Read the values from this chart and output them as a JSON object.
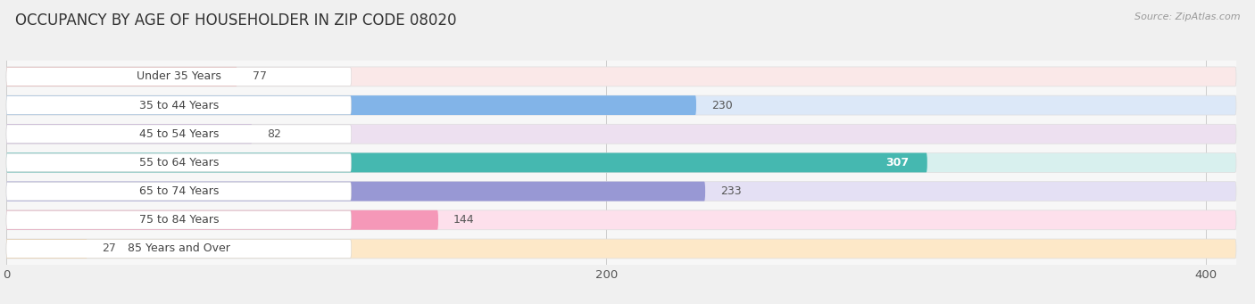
{
  "title": "OCCUPANCY BY AGE OF HOUSEHOLDER IN ZIP CODE 08020",
  "source": "Source: ZipAtlas.com",
  "categories": [
    "Under 35 Years",
    "35 to 44 Years",
    "45 to 54 Years",
    "55 to 64 Years",
    "65 to 74 Years",
    "75 to 84 Years",
    "85 Years and Over"
  ],
  "values": [
    77,
    230,
    82,
    307,
    233,
    144,
    27
  ],
  "bar_colors": [
    "#f0a0a0",
    "#82b4e8",
    "#c4a8d8",
    "#45b8b0",
    "#9898d4",
    "#f598b8",
    "#f5c88a"
  ],
  "bar_bg_colors": [
    "#fae8e8",
    "#dce8f8",
    "#ede0f0",
    "#d8f0ee",
    "#e4e0f4",
    "#fde0ec",
    "#fde8c8"
  ],
  "xlim_data": [
    0,
    410
  ],
  "xticks": [
    0,
    200,
    400
  ],
  "title_fontsize": 12,
  "label_fontsize": 9,
  "value_fontsize": 9,
  "bg_color": "#f0f0f0",
  "plot_bg_color": "#f7f7f7",
  "bar_height": 0.68,
  "label_color": "#444444",
  "value_color_307": "#ffffff",
  "value_color_other": "#555555"
}
